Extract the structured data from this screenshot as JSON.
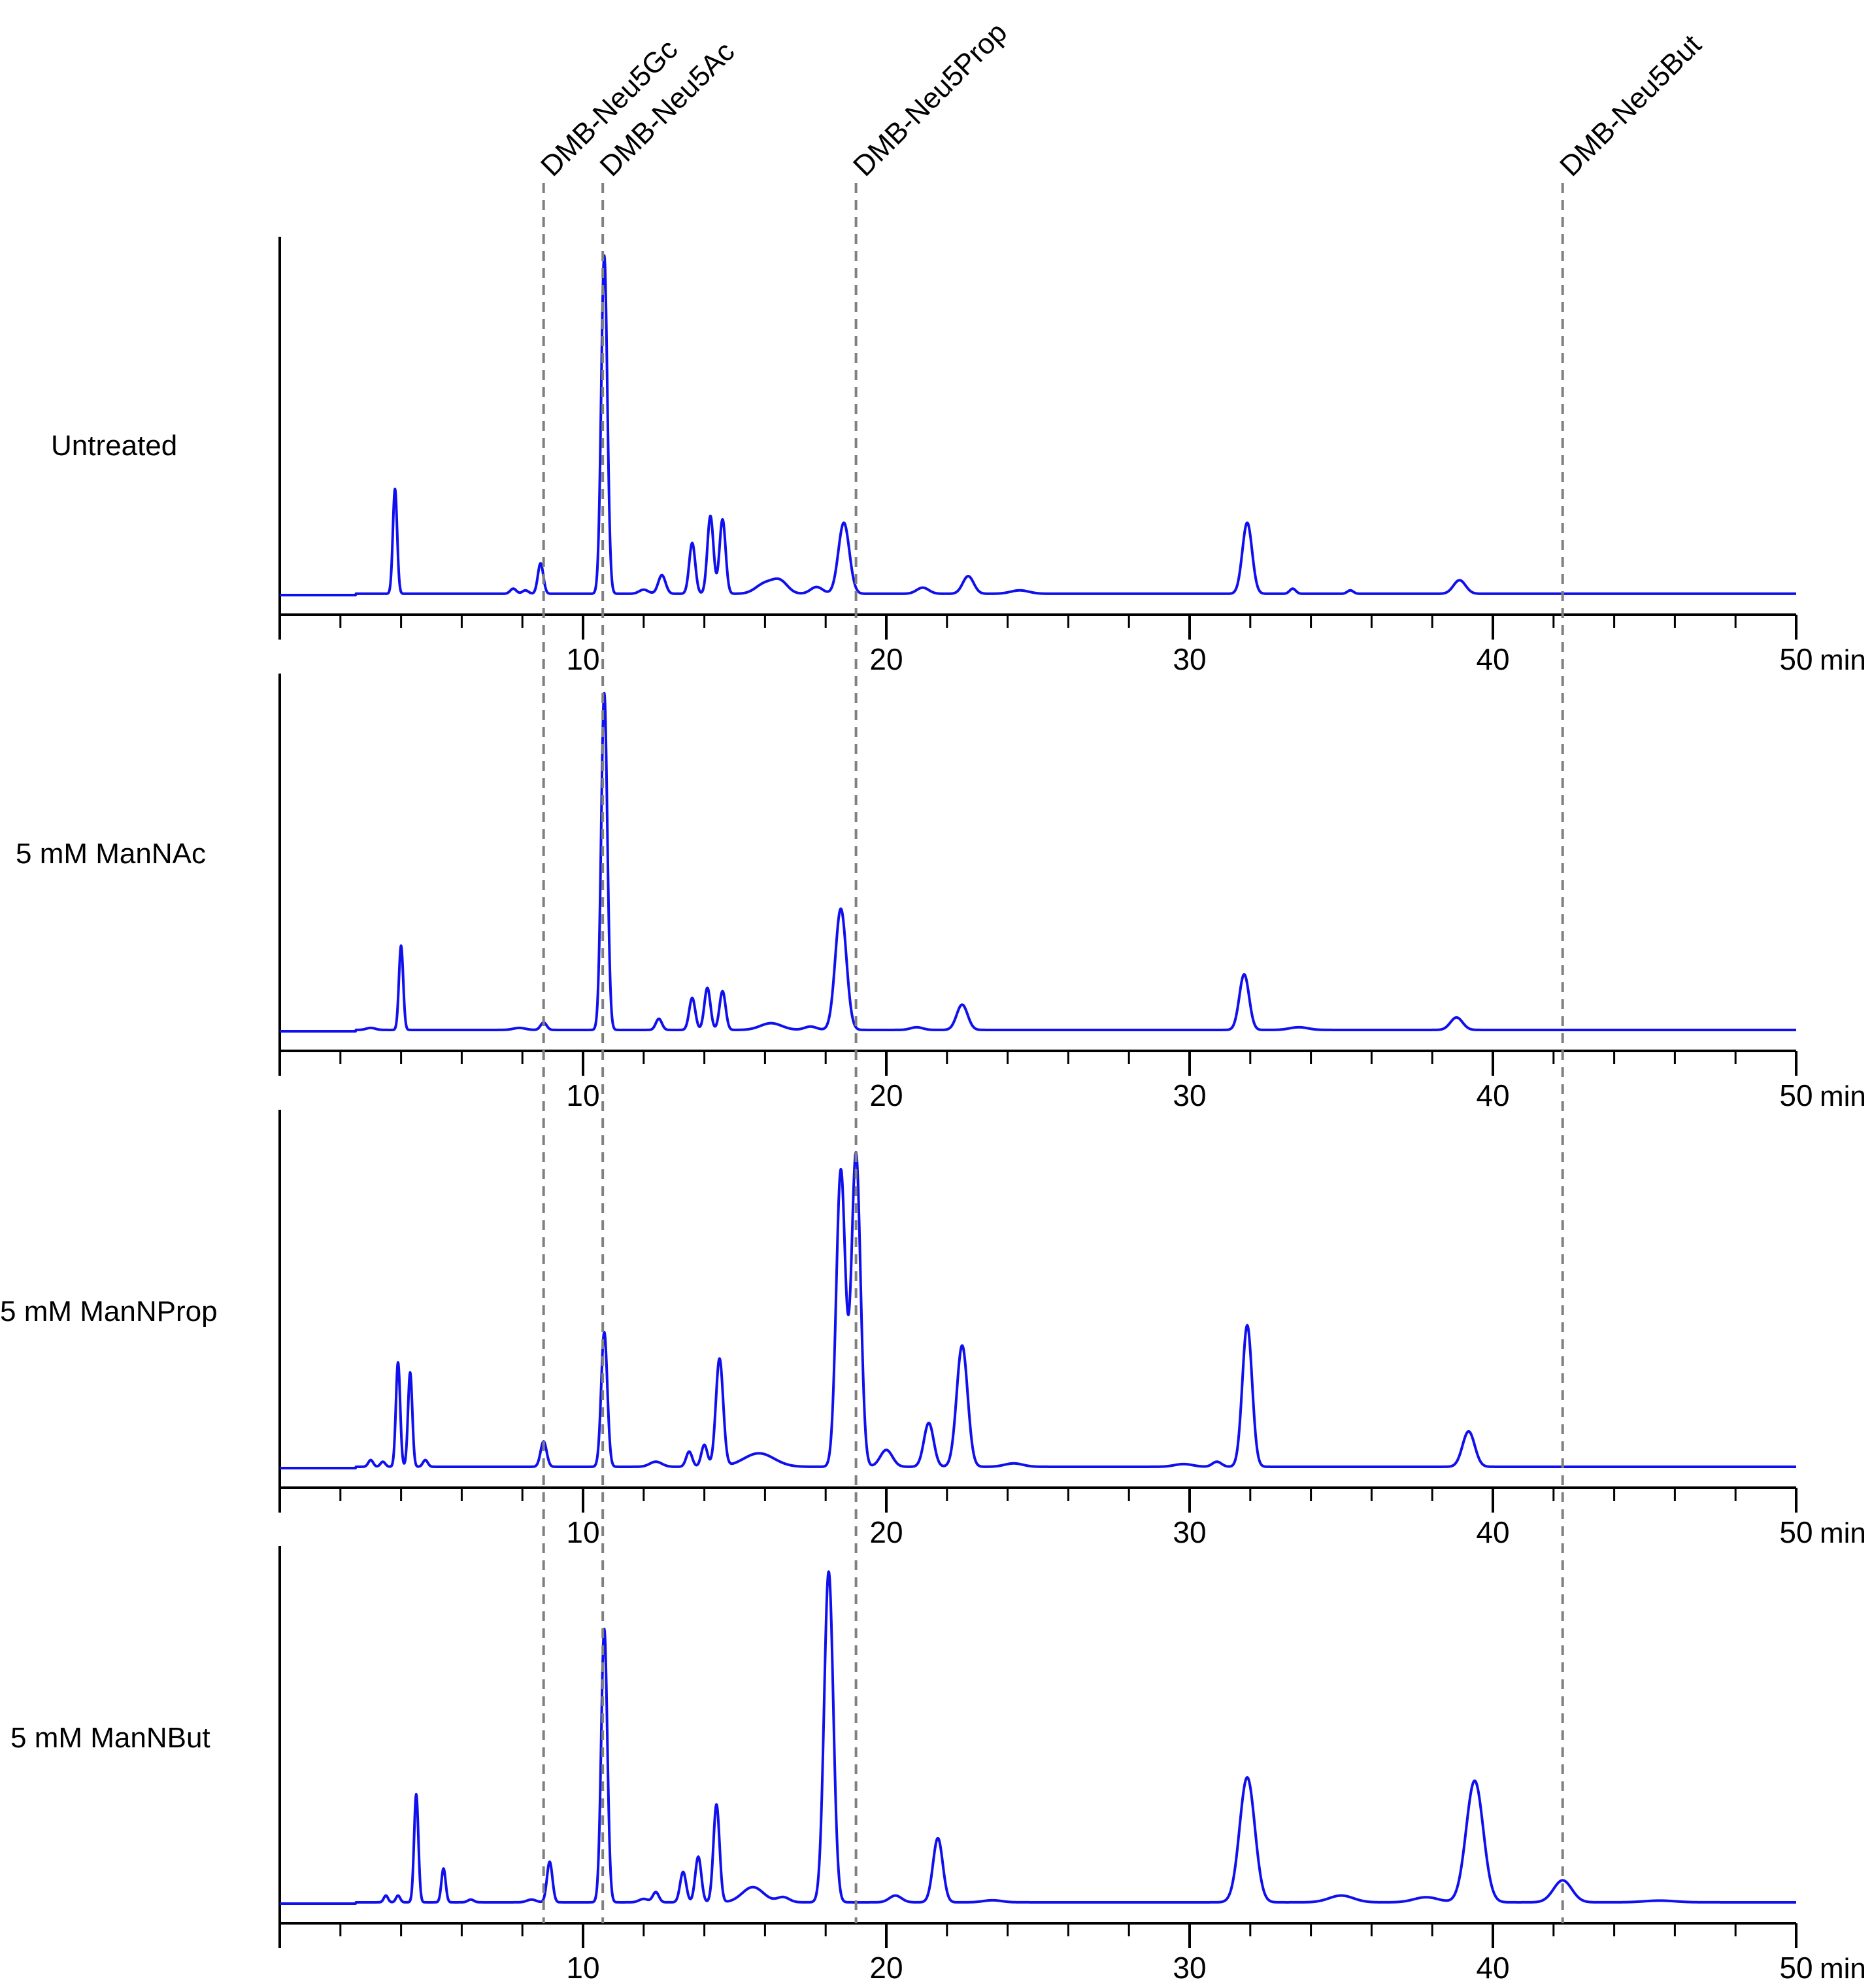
{
  "chart_data": {
    "type": "line",
    "title": "",
    "xlabel": "",
    "x_unit": "min",
    "xlim": [
      0,
      50
    ],
    "x_major_ticks": [
      10,
      20,
      30,
      40,
      50
    ],
    "x_tick_labels": [
      "10",
      "20",
      "30",
      "40",
      "50"
    ],
    "x_minor_step": 2,
    "line_color": "#1010ee",
    "reference_color": "#808080",
    "reference_lines": [
      {
        "name": "DMB-Neu5Gc",
        "x": 8.7
      },
      {
        "name": "DMB-Neu5Ac",
        "x": 10.65
      },
      {
        "name": "DMB-Neu5Prop",
        "x": 19.0
      },
      {
        "name": "DMB-Neu5But",
        "x": 42.3
      }
    ],
    "series": [
      {
        "name": "Untreated",
        "peaks": [
          {
            "x": 3.8,
            "h": 0.31,
            "w": 0.07
          },
          {
            "x": 7.7,
            "h": 0.015,
            "w": 0.1
          },
          {
            "x": 8.1,
            "h": 0.01,
            "w": 0.1
          },
          {
            "x": 8.6,
            "h": 0.09,
            "w": 0.09
          },
          {
            "x": 10.7,
            "h": 1.0,
            "w": 0.1
          },
          {
            "x": 12.0,
            "h": 0.012,
            "w": 0.15
          },
          {
            "x": 12.6,
            "h": 0.055,
            "w": 0.12
          },
          {
            "x": 13.6,
            "h": 0.15,
            "w": 0.1
          },
          {
            "x": 14.2,
            "h": 0.23,
            "w": 0.1
          },
          {
            "x": 14.6,
            "h": 0.22,
            "w": 0.1
          },
          {
            "x": 16.0,
            "h": 0.03,
            "w": 0.3
          },
          {
            "x": 16.5,
            "h": 0.035,
            "w": 0.25
          },
          {
            "x": 17.7,
            "h": 0.02,
            "w": 0.2
          },
          {
            "x": 18.6,
            "h": 0.21,
            "w": 0.18
          },
          {
            "x": 21.2,
            "h": 0.018,
            "w": 0.2
          },
          {
            "x": 22.7,
            "h": 0.052,
            "w": 0.18
          },
          {
            "x": 24.4,
            "h": 0.01,
            "w": 0.3
          },
          {
            "x": 31.9,
            "h": 0.21,
            "w": 0.16
          },
          {
            "x": 33.4,
            "h": 0.015,
            "w": 0.1
          },
          {
            "x": 35.3,
            "h": 0.01,
            "w": 0.1
          },
          {
            "x": 38.9,
            "h": 0.04,
            "w": 0.2
          }
        ]
      },
      {
        "name": "5 mM ManNAc",
        "peaks": [
          {
            "x": 3.0,
            "h": 0.006,
            "w": 0.15
          },
          {
            "x": 4.0,
            "h": 0.25,
            "w": 0.07
          },
          {
            "x": 7.9,
            "h": 0.006,
            "w": 0.2
          },
          {
            "x": 8.7,
            "h": 0.022,
            "w": 0.1
          },
          {
            "x": 10.7,
            "h": 1.0,
            "w": 0.1
          },
          {
            "x": 12.5,
            "h": 0.033,
            "w": 0.1
          },
          {
            "x": 13.6,
            "h": 0.095,
            "w": 0.1
          },
          {
            "x": 14.1,
            "h": 0.125,
            "w": 0.1
          },
          {
            "x": 14.6,
            "h": 0.115,
            "w": 0.1
          },
          {
            "x": 16.2,
            "h": 0.02,
            "w": 0.35
          },
          {
            "x": 17.5,
            "h": 0.01,
            "w": 0.2
          },
          {
            "x": 18.5,
            "h": 0.36,
            "w": 0.18
          },
          {
            "x": 21.0,
            "h": 0.008,
            "w": 0.2
          },
          {
            "x": 22.5,
            "h": 0.075,
            "w": 0.18
          },
          {
            "x": 31.8,
            "h": 0.165,
            "w": 0.16
          },
          {
            "x": 33.6,
            "h": 0.008,
            "w": 0.3
          },
          {
            "x": 38.8,
            "h": 0.037,
            "w": 0.2
          }
        ]
      },
      {
        "name": "5 mM ManNProp",
        "peaks": [
          {
            "x": 3.0,
            "h": 0.02,
            "w": 0.08
          },
          {
            "x": 3.4,
            "h": 0.015,
            "w": 0.08
          },
          {
            "x": 3.9,
            "h": 0.31,
            "w": 0.07
          },
          {
            "x": 4.3,
            "h": 0.28,
            "w": 0.07
          },
          {
            "x": 4.8,
            "h": 0.02,
            "w": 0.08
          },
          {
            "x": 8.7,
            "h": 0.075,
            "w": 0.1
          },
          {
            "x": 10.7,
            "h": 0.4,
            "w": 0.1
          },
          {
            "x": 12.4,
            "h": 0.015,
            "w": 0.2
          },
          {
            "x": 13.5,
            "h": 0.045,
            "w": 0.1
          },
          {
            "x": 14.0,
            "h": 0.065,
            "w": 0.1
          },
          {
            "x": 14.5,
            "h": 0.32,
            "w": 0.12
          },
          {
            "x": 15.8,
            "h": 0.04,
            "w": 0.5
          },
          {
            "x": 18.5,
            "h": 0.88,
            "w": 0.15
          },
          {
            "x": 19.0,
            "h": 0.93,
            "w": 0.15
          },
          {
            "x": 20.0,
            "h": 0.05,
            "w": 0.2
          },
          {
            "x": 21.4,
            "h": 0.13,
            "w": 0.16
          },
          {
            "x": 22.5,
            "h": 0.36,
            "w": 0.18
          },
          {
            "x": 24.2,
            "h": 0.01,
            "w": 0.3
          },
          {
            "x": 29.8,
            "h": 0.008,
            "w": 0.3
          },
          {
            "x": 30.9,
            "h": 0.015,
            "w": 0.15
          },
          {
            "x": 31.9,
            "h": 0.42,
            "w": 0.16
          },
          {
            "x": 39.2,
            "h": 0.105,
            "w": 0.2
          }
        ]
      },
      {
        "name": "5 mM ManNBut",
        "peaks": [
          {
            "x": 3.5,
            "h": 0.02,
            "w": 0.07
          },
          {
            "x": 3.9,
            "h": 0.02,
            "w": 0.07
          },
          {
            "x": 4.5,
            "h": 0.32,
            "w": 0.07
          },
          {
            "x": 5.4,
            "h": 0.1,
            "w": 0.07
          },
          {
            "x": 6.3,
            "h": 0.008,
            "w": 0.1
          },
          {
            "x": 8.3,
            "h": 0.008,
            "w": 0.15
          },
          {
            "x": 8.9,
            "h": 0.12,
            "w": 0.09
          },
          {
            "x": 10.7,
            "h": 0.81,
            "w": 0.1
          },
          {
            "x": 12.0,
            "h": 0.01,
            "w": 0.15
          },
          {
            "x": 12.4,
            "h": 0.03,
            "w": 0.1
          },
          {
            "x": 13.3,
            "h": 0.09,
            "w": 0.1
          },
          {
            "x": 13.8,
            "h": 0.135,
            "w": 0.1
          },
          {
            "x": 14.4,
            "h": 0.29,
            "w": 0.1
          },
          {
            "x": 15.6,
            "h": 0.045,
            "w": 0.35
          },
          {
            "x": 16.6,
            "h": 0.015,
            "w": 0.2
          },
          {
            "x": 18.1,
            "h": 0.98,
            "w": 0.15
          },
          {
            "x": 20.3,
            "h": 0.02,
            "w": 0.2
          },
          {
            "x": 21.7,
            "h": 0.19,
            "w": 0.16
          },
          {
            "x": 23.5,
            "h": 0.006,
            "w": 0.3
          },
          {
            "x": 31.9,
            "h": 0.37,
            "w": 0.25
          },
          {
            "x": 35.0,
            "h": 0.02,
            "w": 0.4
          },
          {
            "x": 37.8,
            "h": 0.015,
            "w": 0.4
          },
          {
            "x": 39.4,
            "h": 0.36,
            "w": 0.28
          },
          {
            "x": 42.3,
            "h": 0.065,
            "w": 0.3
          },
          {
            "x": 45.5,
            "h": 0.005,
            "w": 0.5
          }
        ]
      }
    ]
  }
}
